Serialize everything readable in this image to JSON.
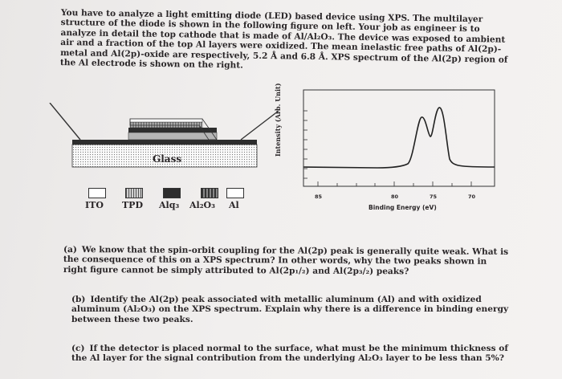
{
  "intro": "You have to analyze a light emitting diode (LED) based device using XPS. The multilayer structure of the diode is shown in the following figure on left. Your job as engineer is to analyze in detail the top cathode that is made of Al/Al₂O₃. The device was exposed to ambient air and a fraction of the top Al layers were oxidized. The mean inelastic free paths of Al(2p)-metal and Al(2p)-oxide are respectively, 5.2 Å and 6.8 Å. XPS spectrum of the Al(2p) region of the Al electrode is shown on the right.",
  "device": {
    "glass_label": "Glass",
    "legend": [
      {
        "label": "ITO",
        "fill": "#ffffff"
      },
      {
        "label": "TPD",
        "fill": "#9a9a9a"
      },
      {
        "label": "Alq₃",
        "fill": "#2d2d2d"
      },
      {
        "label": "Al₂O₃",
        "fill": "#6a6a6a"
      },
      {
        "label": "Al",
        "fill": "#ffffff"
      }
    ]
  },
  "plot": {
    "ylabel": "Intensity (Arb. Unit)",
    "xlabel": "Binding Energy (eV)",
    "xticks": [
      "85",
      "80",
      "75",
      "70"
    ],
    "xlim": [
      86,
      69
    ],
    "peaks_eV": [
      76.8,
      73.2
    ]
  },
  "questions": {
    "a": {
      "label": "(a)",
      "text": "We know that the spin-orbit coupling for the Al(2p) peak is generally quite weak. What is the consequence of this on a XPS spectrum? In other words, why the two peaks shown in right figure cannot be simply attributed to Al(2p₁/₂) and Al(2p₃/₂) peaks?"
    },
    "b": {
      "label": "(b)",
      "text": "Identify the Al(2p) peak associated with metallic aluminum (Al) and with oxidized aluminum (Al₂O₃) on the XPS spectrum. Explain why there is a difference in binding energy between these two peaks."
    },
    "c": {
      "label": "(c)",
      "text": "If the detector is placed normal to the surface, what must be the minimum thickness of the Al layer for the signal contribution from the underlying Al₂O₃ layer to be less than 5%?"
    }
  }
}
